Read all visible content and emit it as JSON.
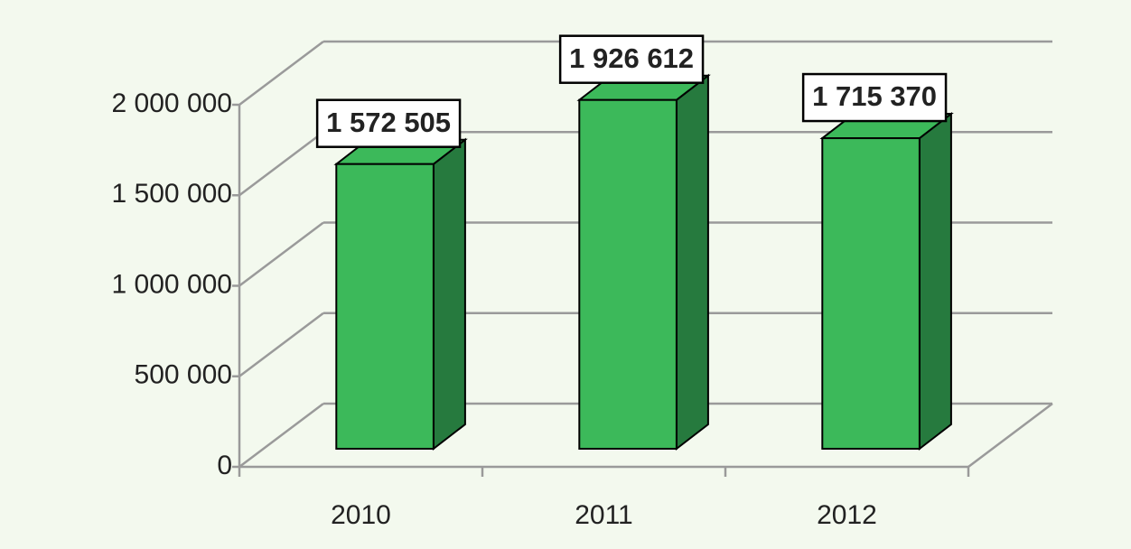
{
  "chart_data": {
    "type": "bar3d",
    "categories": [
      "2010",
      "2011",
      "2012"
    ],
    "values": [
      1572505,
      1926612,
      1715370
    ],
    "value_labels": [
      "1 572 505",
      "1 926 612",
      "1 715 370"
    ],
    "color": "#3cb95a",
    "ylim": [
      0,
      2000000
    ],
    "yticks": [
      0,
      {
        "value": 500000,
        "label": "500 000"
      },
      {
        "value": 1000000,
        "label": "1 000 000"
      },
      {
        "value": 1500000,
        "label": "1 500 000"
      },
      {
        "value": 2000000,
        "label": "2 000 000"
      }
    ],
    "grid": true
  }
}
